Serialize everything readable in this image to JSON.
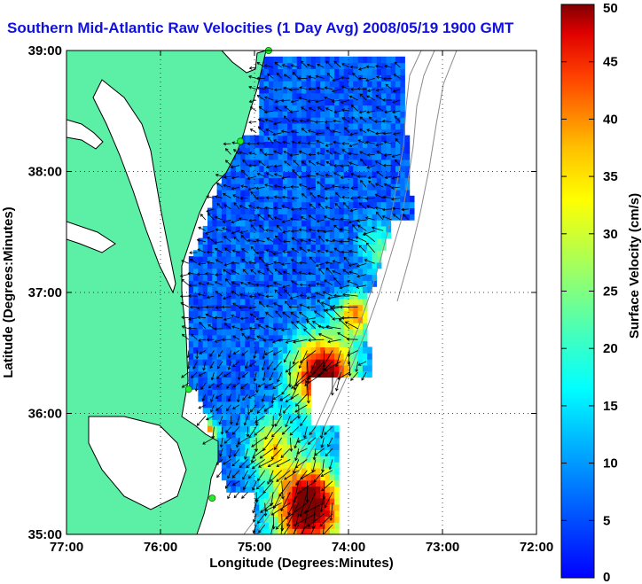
{
  "title": "Southern Mid-Atlantic Raw Velocities (1 Day Avg) 2008/05/19 1900 GMT",
  "map": {
    "xlabel": "Longitude (Degrees:Minutes)",
    "ylabel": "Latitude (Degrees:Minutes)",
    "lon_range": [
      -77,
      -72
    ],
    "lat_range": [
      35,
      39
    ],
    "x_ticks": [
      {
        "value": -77,
        "label": "77:00"
      },
      {
        "value": -76,
        "label": "76:00"
      },
      {
        "value": -75,
        "label": "75:00"
      },
      {
        "value": -74,
        "label": "74:00"
      },
      {
        "value": -73,
        "label": "73:00"
      },
      {
        "value": -72,
        "label": "72:00"
      }
    ],
    "y_ticks": [
      {
        "value": 35,
        "label": "35:00"
      },
      {
        "value": 36,
        "label": "36:00"
      },
      {
        "value": 37,
        "label": "37:00"
      },
      {
        "value": 38,
        "label": "38:00"
      },
      {
        "value": 39,
        "label": "39:00"
      }
    ],
    "grid": "dotted",
    "colors": {
      "land": "#5cf0a6",
      "coast_line": "#000000",
      "bathymetry": "#8a8a8a",
      "arrows": "#000000",
      "stations": "#22ee22"
    },
    "radar_stations": [
      {
        "lon": -74.85,
        "lat": 39.0
      },
      {
        "lon": -75.15,
        "lat": 38.25
      },
      {
        "lon": -75.7,
        "lat": 36.2
      },
      {
        "lon": -75.45,
        "lat": 35.3
      }
    ]
  },
  "colorbar": {
    "label": "Surface Velocity (cm/s)",
    "min": 0,
    "max": 50,
    "ticks": [
      {
        "value": 0,
        "label": "0"
      },
      {
        "value": 5,
        "label": "5"
      },
      {
        "value": 10,
        "label": "10"
      },
      {
        "value": 15,
        "label": "15"
      },
      {
        "value": 20,
        "label": "20"
      },
      {
        "value": 25,
        "label": "25"
      },
      {
        "value": 30,
        "label": "30"
      },
      {
        "value": 35,
        "label": "35"
      },
      {
        "value": 40,
        "label": "40"
      },
      {
        "value": 45,
        "label": "45"
      },
      {
        "value": 50,
        "label": "50"
      }
    ],
    "colormap": "jet"
  }
}
